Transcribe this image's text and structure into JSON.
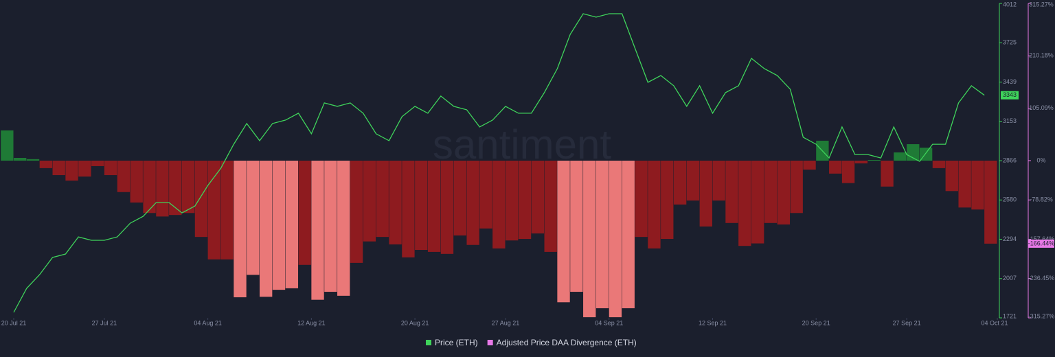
{
  "chart_data": {
    "type": "line_bar_dual",
    "watermark": "santiment",
    "xlim": [
      "2021-07-20",
      "2021-10-04"
    ],
    "xticks": [
      {
        "value": "2021-07-20",
        "label": "20 Jul 21"
      },
      {
        "value": "2021-07-27",
        "label": "27 Jul 21"
      },
      {
        "value": "2021-08-04",
        "label": "04 Aug 21"
      },
      {
        "value": "2021-08-12",
        "label": "12 Aug 21"
      },
      {
        "value": "2021-08-20",
        "label": "20 Aug 21"
      },
      {
        "value": "2021-08-27",
        "label": "27 Aug 21"
      },
      {
        "value": "2021-09-04",
        "label": "04 Sep 21"
      },
      {
        "value": "2021-09-12",
        "label": "12 Sep 21"
      },
      {
        "value": "2021-09-20",
        "label": "20 Sep 21"
      },
      {
        "value": "2021-09-27",
        "label": "27 Sep 21"
      },
      {
        "value": "2021-10-04",
        "label": "04 Oct 21"
      }
    ],
    "ylim": [
      1721,
      4012
    ],
    "yticks": [
      1721,
      2007,
      2294,
      2580,
      2866,
      3153,
      3439,
      3725,
      4012
    ],
    "y2lim": [
      -315.27,
      315.27
    ],
    "y2ticks": [
      {
        "value": -315.27,
        "label": "-315.27%"
      },
      {
        "value": -236.45,
        "label": "-236.45%"
      },
      {
        "value": -157.64,
        "label": "-157.64%"
      },
      {
        "value": -78.82,
        "label": "-78.82%"
      },
      {
        "value": 0,
        "label": "0%"
      },
      {
        "value": 105.09,
        "label": "105.09%"
      },
      {
        "value": 210.18,
        "label": "210.18%"
      },
      {
        "value": 315.27,
        "label": "315.27%"
      }
    ],
    "series": [
      {
        "name": "Price (ETH)",
        "kind": "line",
        "color": "#3fd45b",
        "last_label": "3343",
        "x": [
          "2021-07-20",
          "2021-07-21",
          "2021-07-22",
          "2021-07-23",
          "2021-07-24",
          "2021-07-25",
          "2021-07-26",
          "2021-07-27",
          "2021-07-28",
          "2021-07-29",
          "2021-07-30",
          "2021-07-31",
          "2021-08-01",
          "2021-08-02",
          "2021-08-03",
          "2021-08-04",
          "2021-08-05",
          "2021-08-06",
          "2021-08-07",
          "2021-08-08",
          "2021-08-09",
          "2021-08-10",
          "2021-08-11",
          "2021-08-12",
          "2021-08-13",
          "2021-08-14",
          "2021-08-15",
          "2021-08-16",
          "2021-08-17",
          "2021-08-18",
          "2021-08-19",
          "2021-08-20",
          "2021-08-21",
          "2021-08-22",
          "2021-08-23",
          "2021-08-24",
          "2021-08-25",
          "2021-08-26",
          "2021-08-27",
          "2021-08-28",
          "2021-08-29",
          "2021-08-30",
          "2021-08-31",
          "2021-09-01",
          "2021-09-02",
          "2021-09-03",
          "2021-09-04",
          "2021-09-05",
          "2021-09-06",
          "2021-09-07",
          "2021-09-08",
          "2021-09-09",
          "2021-09-10",
          "2021-09-11",
          "2021-09-12",
          "2021-09-13",
          "2021-09-14",
          "2021-09-15",
          "2021-09-16",
          "2021-09-17",
          "2021-09-18",
          "2021-09-19",
          "2021-09-20",
          "2021-09-21",
          "2021-09-22",
          "2021-09-23",
          "2021-09-24",
          "2021-09-25",
          "2021-09-26",
          "2021-09-27",
          "2021-09-28",
          "2021-09-29",
          "2021-09-30",
          "2021-10-01",
          "2021-10-02",
          "2021-10-03"
        ],
        "values": [
          1761,
          1936,
          2036,
          2161,
          2186,
          2311,
          2286,
          2286,
          2311,
          2411,
          2461,
          2561,
          2561,
          2486,
          2536,
          2686,
          2811,
          2986,
          3137,
          3012,
          3137,
          3162,
          3212,
          3062,
          3287,
          3262,
          3287,
          3212,
          3062,
          3012,
          3187,
          3262,
          3212,
          3337,
          3262,
          3237,
          3112,
          3162,
          3262,
          3212,
          3212,
          3362,
          3537,
          3787,
          3937,
          3912,
          3937,
          3937,
          3687,
          3437,
          3487,
          3412,
          3262,
          3412,
          3212,
          3362,
          3412,
          3612,
          3537,
          3487,
          3387,
          3037,
          2986,
          2886,
          3112,
          2911,
          2911,
          2886,
          3112,
          2911,
          2861,
          2986,
          2986,
          3287,
          3412,
          3343
        ]
      },
      {
        "name": "Adjusted Price DAA Divergence (ETH)",
        "kind": "bar",
        "axis": "y2",
        "color": "#e879e8",
        "last_label": "-166.44%",
        "x": [
          "2021-07-19",
          "2021-07-20",
          "2021-07-21",
          "2021-07-22",
          "2021-07-23",
          "2021-07-24",
          "2021-07-25",
          "2021-07-26",
          "2021-07-27",
          "2021-07-28",
          "2021-07-29",
          "2021-07-30",
          "2021-07-31",
          "2021-08-01",
          "2021-08-02",
          "2021-08-03",
          "2021-08-04",
          "2021-08-05",
          "2021-08-06",
          "2021-08-07",
          "2021-08-08",
          "2021-08-09",
          "2021-08-10",
          "2021-08-11",
          "2021-08-12",
          "2021-08-13",
          "2021-08-14",
          "2021-08-15",
          "2021-08-16",
          "2021-08-17",
          "2021-08-18",
          "2021-08-19",
          "2021-08-20",
          "2021-08-21",
          "2021-08-22",
          "2021-08-23",
          "2021-08-24",
          "2021-08-25",
          "2021-08-26",
          "2021-08-27",
          "2021-08-28",
          "2021-08-29",
          "2021-08-30",
          "2021-08-31",
          "2021-09-01",
          "2021-09-02",
          "2021-09-03",
          "2021-09-04",
          "2021-09-05",
          "2021-09-06",
          "2021-09-07",
          "2021-09-08",
          "2021-09-09",
          "2021-09-10",
          "2021-09-11",
          "2021-09-12",
          "2021-09-13",
          "2021-09-14",
          "2021-09-15",
          "2021-09-16",
          "2021-09-17",
          "2021-09-18",
          "2021-09-19",
          "2021-09-20",
          "2021-09-21",
          "2021-09-22",
          "2021-09-23",
          "2021-09-24",
          "2021-09-25",
          "2021-09-26",
          "2021-09-27",
          "2021-09-28",
          "2021-09-29",
          "2021-09-30",
          "2021-10-01",
          "2021-10-02",
          "2021-10-03"
        ],
        "values": [
          60.6,
          5.5,
          3,
          -15,
          -29,
          -40,
          -32,
          -11,
          -29,
          -63,
          -84,
          -105,
          -112,
          -109,
          -105,
          -153,
          -198,
          -198,
          -274,
          -229,
          -273,
          -259,
          -256,
          -209,
          -279,
          -263,
          -271,
          -205,
          -162,
          -153,
          -168,
          -194,
          -179,
          -183,
          -187,
          -150,
          -169,
          -136,
          -176,
          -160,
          -157,
          -146,
          -183,
          -284,
          -263,
          -314,
          -296,
          -314,
          -296,
          -153,
          -176,
          -157,
          -88,
          -80,
          -132,
          -80,
          -125,
          -171,
          -166,
          -125,
          -128,
          -105,
          -18,
          40,
          -26,
          -45,
          -5.5,
          1.4,
          -52,
          16.5,
          33,
          26,
          -15,
          -61,
          -94,
          -98,
          -166.44
        ],
        "colors": [
          "#1f7a36",
          "#1f7a36",
          "#1f7a36",
          "#8e1b1f",
          "#8e1b1f",
          "#8e1b1f",
          "#8e1b1f",
          "#8e1b1f",
          "#8e1b1f",
          "#8e1b1f",
          "#8e1b1f",
          "#8e1b1f",
          "#8e1b1f",
          "#8e1b1f",
          "#8e1b1f",
          "#8e1b1f",
          "#8e1b1f",
          "#8e1b1f",
          "#ea7878",
          "#ea7878",
          "#ea7878",
          "#ea7878",
          "#ea7878",
          "#8e1b1f",
          "#ea7878",
          "#ea7878",
          "#ea7878",
          "#8e1b1f",
          "#8e1b1f",
          "#8e1b1f",
          "#8e1b1f",
          "#8e1b1f",
          "#8e1b1f",
          "#8e1b1f",
          "#8e1b1f",
          "#8e1b1f",
          "#8e1b1f",
          "#8e1b1f",
          "#8e1b1f",
          "#8e1b1f",
          "#8e1b1f",
          "#8e1b1f",
          "#8e1b1f",
          "#ea7878",
          "#ea7878",
          "#ea7878",
          "#ea7878",
          "#ea7878",
          "#ea7878",
          "#8e1b1f",
          "#8e1b1f",
          "#8e1b1f",
          "#8e1b1f",
          "#8e1b1f",
          "#8e1b1f",
          "#8e1b1f",
          "#8e1b1f",
          "#8e1b1f",
          "#8e1b1f",
          "#8e1b1f",
          "#8e1b1f",
          "#8e1b1f",
          "#8e1b1f",
          "#1f7a36",
          "#8e1b1f",
          "#8e1b1f",
          "#8e1b1f",
          "#1f7a36",
          "#8e1b1f",
          "#1f7a36",
          "#1f7a36",
          "#1f7a36",
          "#8e1b1f",
          "#8e1b1f",
          "#8e1b1f",
          "#8e1b1f",
          "#8e1b1f"
        ]
      }
    ]
  }
}
